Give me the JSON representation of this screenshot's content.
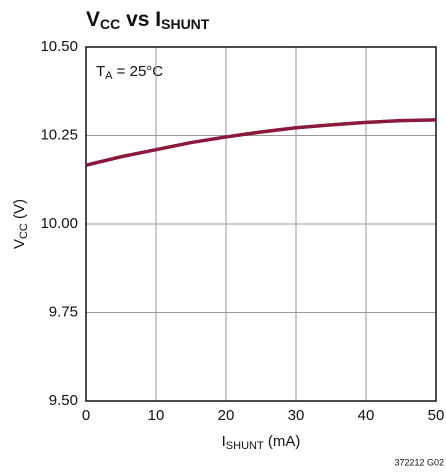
{
  "chart_data": {
    "type": "line",
    "title": [
      "V",
      "CC",
      " vs I",
      "SHUNT"
    ],
    "xlabel": [
      "I",
      "SHUNT",
      " (mA)"
    ],
    "ylabel": [
      "V",
      "CC",
      " (V)"
    ],
    "annotation": [
      "T",
      "A",
      " = 25°C"
    ],
    "footnote": "372212 G02",
    "x": [
      0,
      5,
      10,
      15,
      20,
      25,
      30,
      35,
      40,
      45,
      50
    ],
    "values": [
      10.166,
      10.19,
      10.21,
      10.23,
      10.246,
      10.26,
      10.272,
      10.28,
      10.287,
      10.292,
      10.294
    ],
    "color": "#8b1a3a",
    "xlim": [
      0,
      50
    ],
    "xticks": [
      0,
      10,
      20,
      30,
      40,
      50
    ],
    "ylim": [
      9.5,
      10.5
    ],
    "yticks": [
      {
        "value": 9.5,
        "label": "9.50"
      },
      {
        "value": 9.75,
        "label": "9.75"
      },
      {
        "value": 10,
        "label": "10.00"
      },
      {
        "value": 10.25,
        "label": "10.25"
      },
      {
        "value": 10.5,
        "label": "10.50"
      }
    ],
    "grid": true
  }
}
